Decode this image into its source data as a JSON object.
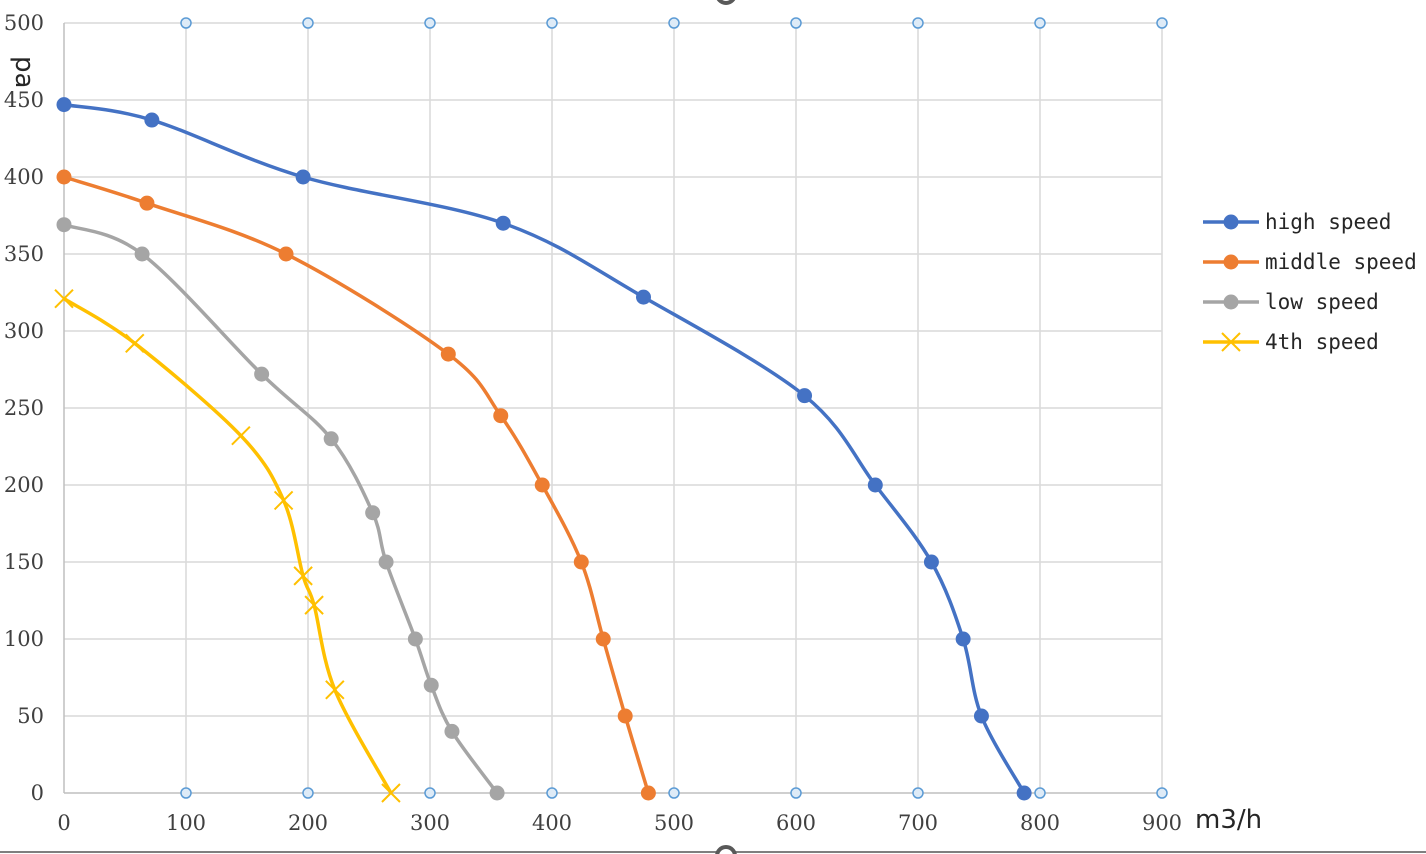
{
  "chart_data": {
    "type": "line",
    "title": "",
    "xlabel": "m3/h",
    "ylabel": "pa",
    "xlim": [
      0,
      900
    ],
    "ylim": [
      0,
      500
    ],
    "x_ticks": [
      0,
      100,
      200,
      300,
      400,
      500,
      600,
      700,
      800,
      900
    ],
    "y_ticks": [
      0,
      50,
      100,
      150,
      200,
      250,
      300,
      350,
      400,
      450,
      500
    ],
    "grid": true,
    "legend_position": "right",
    "series": [
      {
        "name": "high speed",
        "color": "#4472C4",
        "marker": "circle",
        "points": [
          [
            0,
            447
          ],
          [
            72,
            437
          ],
          [
            196,
            400
          ],
          [
            360,
            370
          ],
          [
            475,
            322
          ],
          [
            607,
            258
          ],
          [
            665,
            200
          ],
          [
            711,
            150
          ],
          [
            737,
            100
          ],
          [
            752,
            50
          ],
          [
            787,
            0
          ]
        ]
      },
      {
        "name": "middle speed",
        "color": "#ED7D31",
        "marker": "circle",
        "points": [
          [
            0,
            400
          ],
          [
            68,
            383
          ],
          [
            182,
            350
          ],
          [
            315,
            285
          ],
          [
            358,
            245
          ],
          [
            392,
            200
          ],
          [
            424,
            150
          ],
          [
            442,
            100
          ],
          [
            460,
            50
          ],
          [
            479,
            0
          ]
        ]
      },
      {
        "name": "low speed",
        "color": "#A5A5A5",
        "marker": "circle",
        "points": [
          [
            0,
            369
          ],
          [
            64,
            350
          ],
          [
            162,
            272
          ],
          [
            219,
            230
          ],
          [
            253,
            182
          ],
          [
            264,
            150
          ],
          [
            288,
            100
          ],
          [
            301,
            70
          ],
          [
            318,
            40
          ],
          [
            355,
            0
          ]
        ]
      },
      {
        "name": "4th speed",
        "color": "#FFC000",
        "marker": "x",
        "points": [
          [
            0,
            321
          ],
          [
            58,
            292
          ],
          [
            145,
            232
          ],
          [
            180,
            190
          ],
          [
            196,
            141
          ],
          [
            205,
            122
          ],
          [
            222,
            67
          ],
          [
            268,
            0
          ]
        ]
      }
    ],
    "secondary_points": {
      "color": "#5B9BD5",
      "marker": "small-circle",
      "top_row": [
        100,
        200,
        300,
        400,
        500,
        600,
        700,
        800,
        900
      ],
      "bottom_row": [
        100,
        200,
        300,
        400,
        500,
        600,
        700,
        800,
        900
      ]
    }
  }
}
